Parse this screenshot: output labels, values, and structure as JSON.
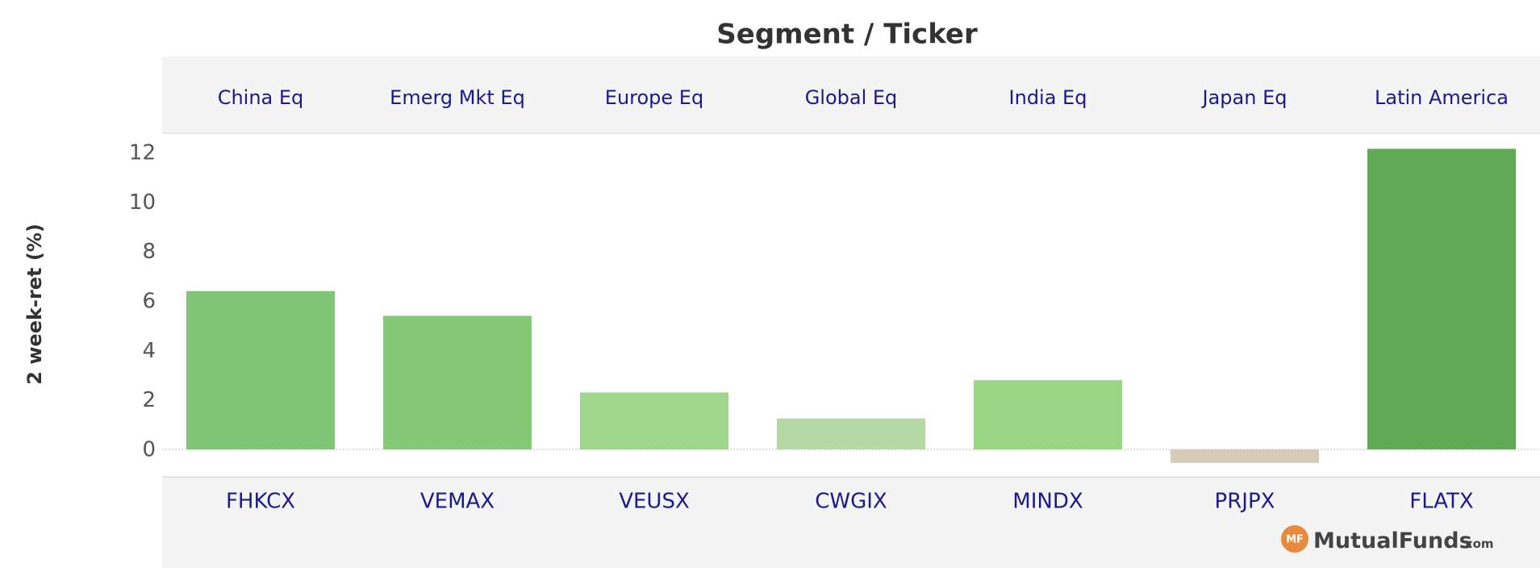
{
  "chart_data": {
    "type": "bar",
    "title": "Segment / Ticker",
    "ylabel": "2 week-ret (%)",
    "ylim": [
      -1,
      12.5
    ],
    "yticks": [
      0,
      2,
      4,
      6,
      8,
      10,
      12
    ],
    "segments": [
      "China Eq",
      "Emerg Mkt Eq",
      "Europe Eq",
      "Global Eq",
      "India Eq",
      "Japan Eq",
      "Latin America"
    ],
    "categories": [
      "FHKCX",
      "VEMAX",
      "VEUSX",
      "CWGIX",
      "MINDX",
      "PRJPX",
      "FLATX"
    ],
    "values": [
      6.4,
      5.4,
      2.3,
      1.25,
      2.8,
      -0.55,
      12.15
    ],
    "colors": [
      "#80c575",
      "#84c878",
      "#9fd68c",
      "#b5d9a5",
      "#99d585",
      "#d6cbb6",
      "#62a957"
    ],
    "grid": false
  },
  "logo": {
    "badge": "MF",
    "name": "MutualFunds",
    "suffix": ".com"
  }
}
